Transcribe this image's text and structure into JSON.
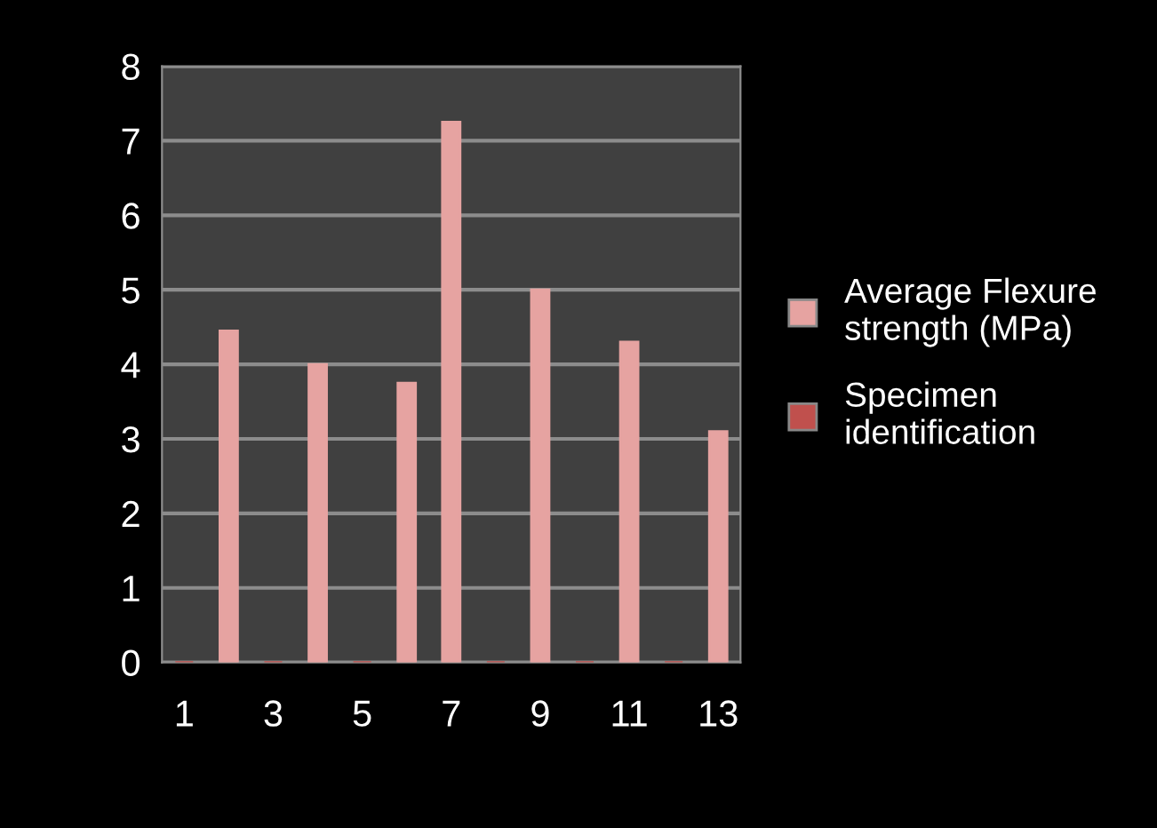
{
  "chart_data": {
    "type": "bar",
    "categories": [
      "1",
      null,
      "3",
      null,
      "5",
      null,
      "7",
      null,
      "9",
      null,
      "11",
      null,
      "13"
    ],
    "series": [
      {
        "name": "Average Flexure strength (MPa)",
        "color": "#e6a3a1",
        "values": [
          null,
          4.45,
          null,
          4.0,
          null,
          3.75,
          7.25,
          null,
          5.0,
          null,
          4.3,
          null,
          3.1
        ]
      },
      {
        "name": "Specimen identification",
        "color": "#c0504d",
        "values": [
          0,
          null,
          0,
          null,
          0,
          null,
          null,
          0,
          null,
          0,
          null,
          0,
          null
        ]
      }
    ],
    "ylim": [
      0,
      8
    ],
    "yticks": [
      0,
      1,
      2,
      3,
      4,
      5,
      6,
      7,
      8
    ],
    "grid": "y",
    "legend": "right"
  }
}
